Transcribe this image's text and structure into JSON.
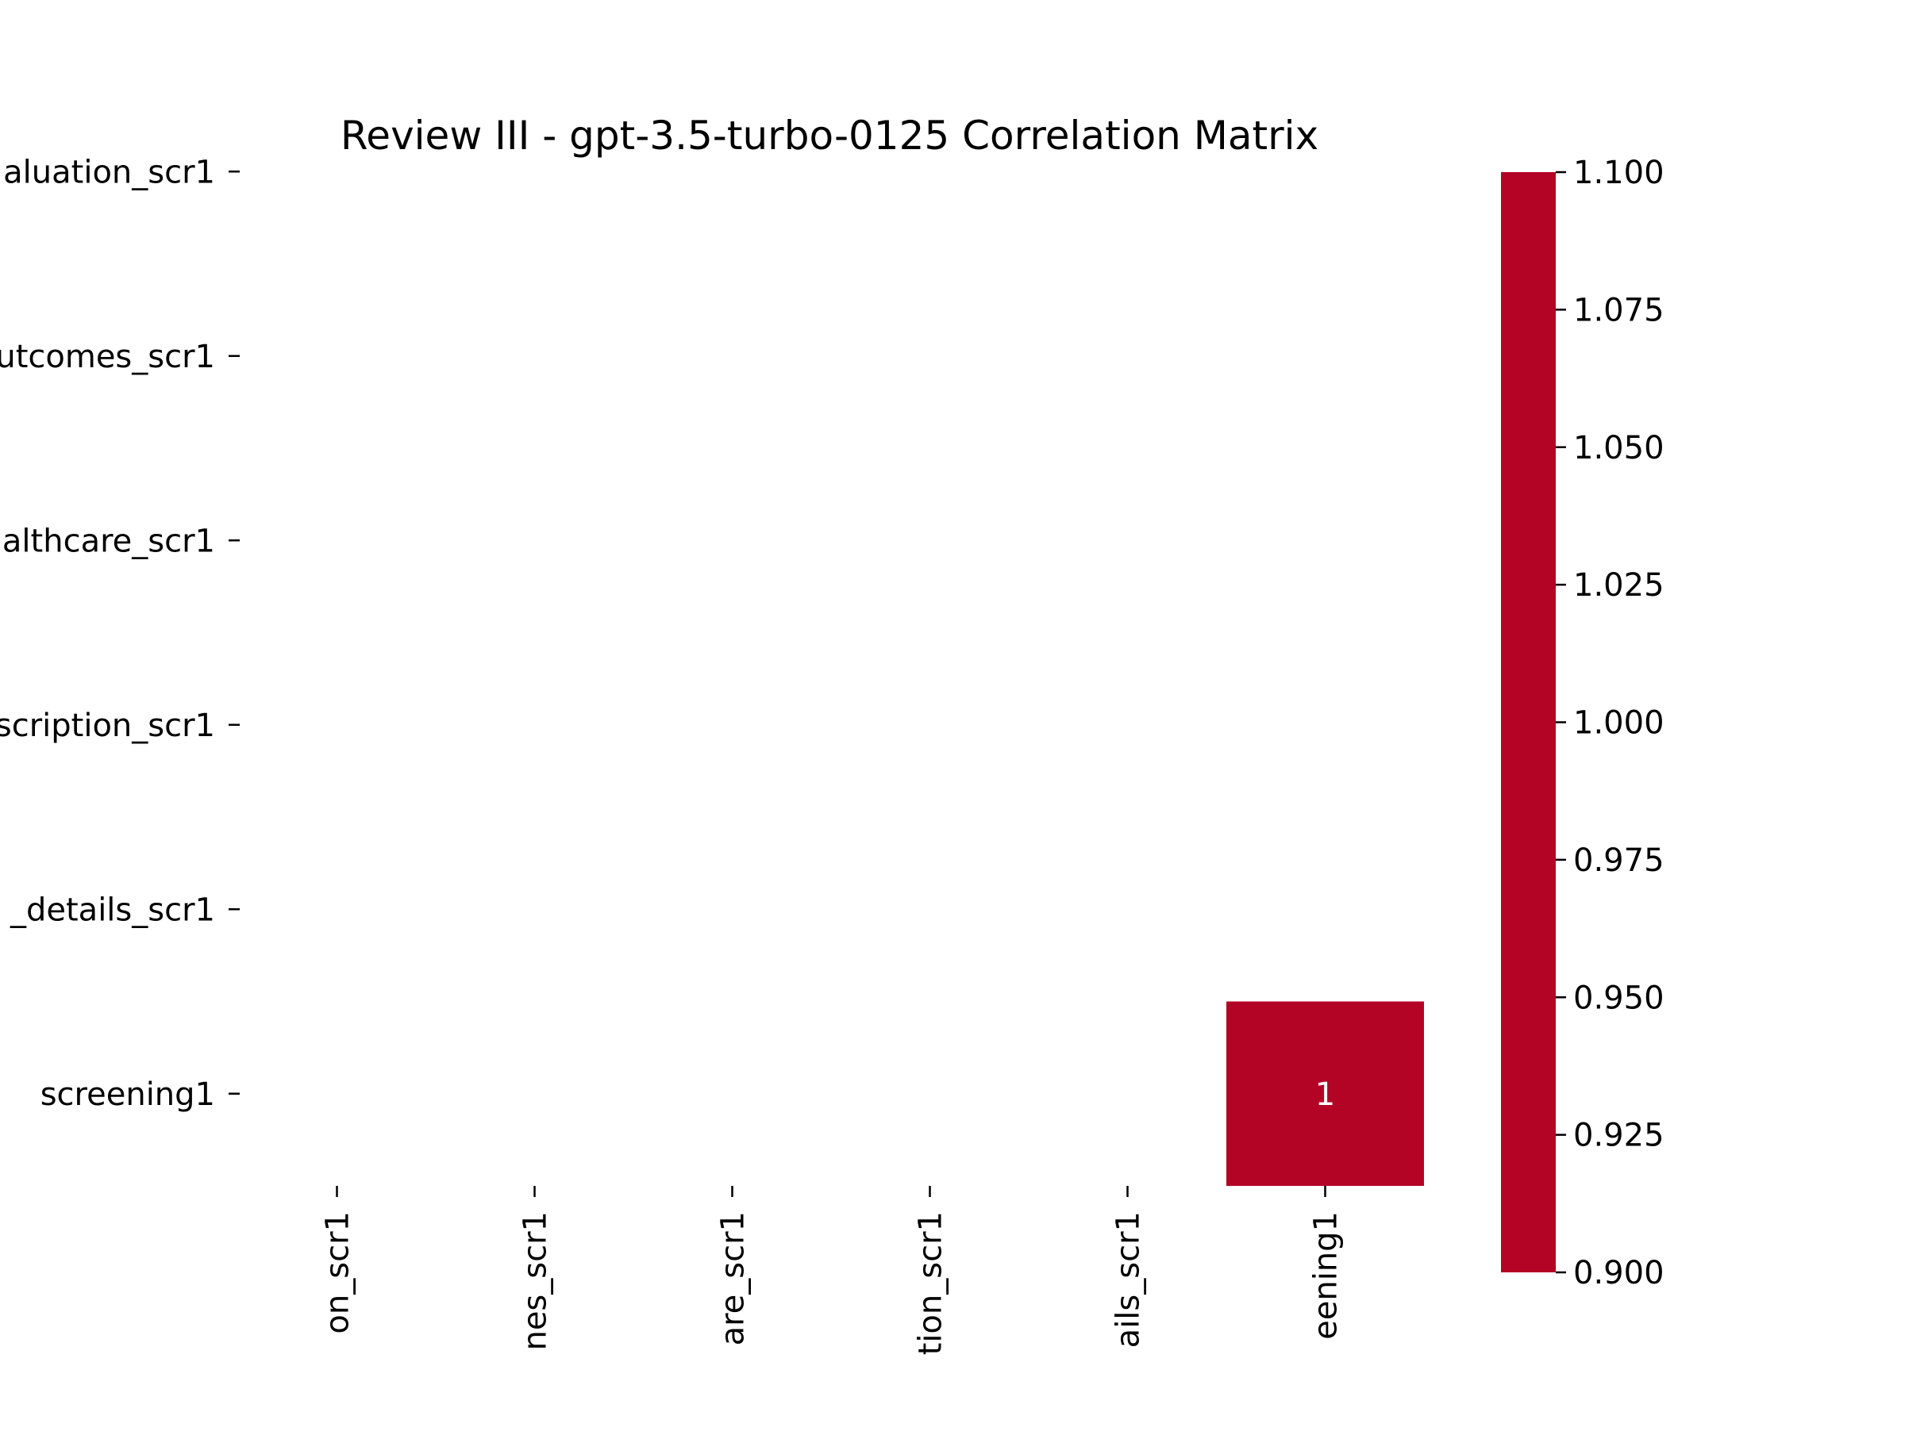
{
  "chart_data": {
    "type": "heatmap",
    "title": "Review III - gpt-3.5-turbo-0125 Correlation Matrix",
    "y_tick_labels": [
      "aluation_scr1",
      "utcomes_scr1",
      "althcare_scr1",
      "scription_scr1",
      "_details_scr1",
      "screening1"
    ],
    "x_tick_labels": [
      "on_scr1",
      "nes_scr1",
      "are_scr1",
      "tion_scr1",
      "ails_scr1",
      "eening1"
    ],
    "cells": [
      {
        "row": 5,
        "col": 5,
        "value": 1,
        "label": "1"
      }
    ],
    "colorbar": {
      "range": [
        0.9,
        1.1
      ],
      "ticks": [
        "0.900",
        "0.925",
        "0.950",
        "0.975",
        "1.000",
        "1.025",
        "1.050",
        "1.075",
        "1.100"
      ],
      "color": "#b40426"
    },
    "cell_color": "#b40426",
    "annotation_color": "#ffffff"
  }
}
